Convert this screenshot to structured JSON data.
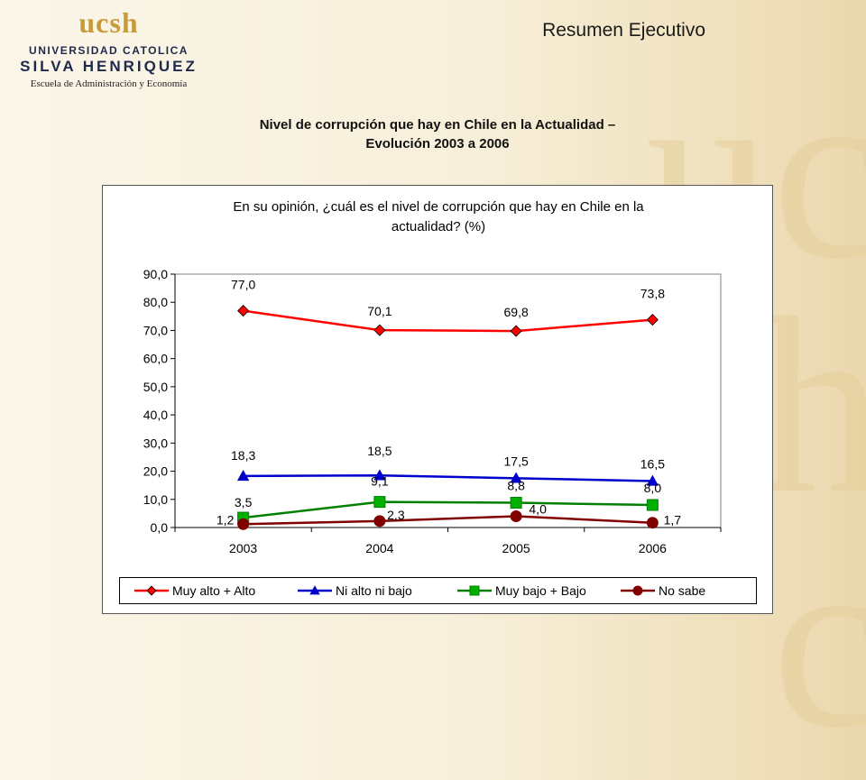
{
  "header": {
    "title": "Resumen Ejecutivo",
    "logo": {
      "mark": "ucsh",
      "university": "UNIVERSIDAD CATOLICA",
      "name": "SILVA HENRIQUEZ",
      "school": "Escuela de Administración y Economía"
    }
  },
  "page": {
    "title_line1": "Nivel de corrupción que hay en Chile en la Actualidad –",
    "title_line2": "Evolución 2003 a 2006"
  },
  "chart_data": {
    "type": "line",
    "title_line1": "En su opinión, ¿cuál es el nivel de corrupción que hay en Chile en la",
    "title_line2": "actualidad? (%)",
    "categories": [
      "2003",
      "2004",
      "2005",
      "2006"
    ],
    "ylim": [
      0,
      90
    ],
    "yticks": [
      0,
      10,
      20,
      30,
      40,
      50,
      60,
      70,
      80,
      90
    ],
    "ytick_labels": [
      "0,0",
      "10,0",
      "20,0",
      "30,0",
      "40,0",
      "50,0",
      "60,0",
      "70,0",
      "80,0",
      "90,0"
    ],
    "grid": false,
    "legend_position": "bottom",
    "series": [
      {
        "name": "Muy alto + Alto",
        "values": [
          77.0,
          70.1,
          69.8,
          73.8
        ],
        "labels": [
          "77,0",
          "70,1",
          "69,8",
          "73,8"
        ],
        "color": "#ff0000",
        "marker_fill": "#ff0000",
        "marker": "diamond"
      },
      {
        "name": "Ni alto ni bajo",
        "values": [
          18.3,
          18.5,
          17.5,
          16.5
        ],
        "labels": [
          "18,3",
          "18,5",
          "17,5",
          "16,5"
        ],
        "color": "#0000cc",
        "marker_fill": "#0000cc",
        "marker": "triangle"
      },
      {
        "name": "Muy bajo + Bajo",
        "values": [
          3.5,
          9.1,
          8.8,
          8.0
        ],
        "labels": [
          "3,5",
          "9,1",
          "8,8",
          "8,0"
        ],
        "color": "#008000",
        "marker_fill": "#00b000",
        "marker": "square"
      },
      {
        "name": "No sabe",
        "values": [
          1.2,
          2.3,
          4.0,
          1.7
        ],
        "labels": [
          "1,2",
          "2,3",
          "4,0",
          "1,7"
        ],
        "color": "#800000",
        "marker_fill": "#800000",
        "marker": "circle"
      }
    ]
  }
}
